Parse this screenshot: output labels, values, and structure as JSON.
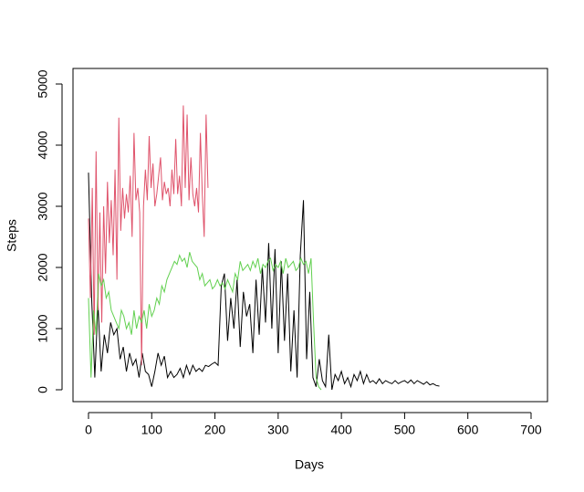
{
  "chart_data": {
    "type": "line",
    "xlabel": "Days",
    "ylabel": "Steps",
    "xlim": [
      -24.5,
      726
    ],
    "ylim": [
      -194,
      5254
    ],
    "xticks": [
      0,
      100,
      200,
      300,
      400,
      500,
      600,
      700
    ],
    "yticks": [
      0,
      1000,
      2000,
      3000,
      4000,
      5000
    ],
    "series": [
      {
        "color": "#000000",
        "x": [
          0,
          5,
          10,
          15,
          20,
          25,
          30,
          35,
          40,
          45,
          50,
          55,
          60,
          65,
          70,
          75,
          80,
          85,
          90,
          95,
          100,
          105,
          110,
          115,
          120,
          125,
          130,
          135,
          140,
          145,
          150,
          155,
          160,
          165,
          170,
          175,
          180,
          185,
          190,
          195,
          200,
          205,
          210,
          215,
          220,
          225,
          230,
          235,
          240,
          245,
          250,
          255,
          260,
          265,
          270,
          275,
          280,
          285,
          290,
          295,
          300,
          305,
          310,
          315,
          320,
          325,
          330,
          335,
          340,
          345,
          350,
          355,
          360,
          365,
          370,
          375,
          380,
          385,
          390,
          395,
          400,
          405,
          410,
          415,
          420,
          425,
          430,
          435,
          440,
          445,
          450,
          455,
          460,
          465,
          470,
          475,
          480,
          485,
          490,
          495,
          500,
          505,
          510,
          515,
          520,
          525,
          530,
          535,
          540,
          545,
          550,
          555
        ],
        "values": [
          3550,
          1500,
          200,
          1400,
          300,
          900,
          600,
          1100,
          900,
          1000,
          500,
          700,
          300,
          600,
          400,
          500,
          200,
          600,
          300,
          250,
          50,
          300,
          600,
          400,
          550,
          200,
          300,
          200,
          250,
          350,
          200,
          400,
          250,
          400,
          300,
          350,
          300,
          400,
          380,
          420,
          450,
          400,
          1700,
          1900,
          800,
          1500,
          1000,
          1800,
          700,
          1600,
          1200,
          1400,
          600,
          1800,
          900,
          2000,
          1100,
          2400,
          1000,
          2300,
          600,
          2100,
          800,
          1900,
          300,
          1300,
          200,
          2200,
          3100,
          500,
          1600,
          200,
          50,
          500,
          150,
          50,
          900,
          0,
          250,
          150,
          300,
          100,
          200,
          50,
          250,
          150,
          300,
          100,
          250,
          120,
          150,
          100,
          180,
          100,
          150,
          120,
          100,
          150,
          100,
          130,
          150,
          110,
          160,
          100,
          150,
          120,
          90,
          130,
          80,
          100,
          70,
          60
        ]
      },
      {
        "color": "#DF536B",
        "x": [
          0,
          3,
          6,
          9,
          12,
          15,
          18,
          21,
          24,
          27,
          30,
          33,
          36,
          39,
          42,
          45,
          48,
          51,
          54,
          57,
          60,
          63,
          66,
          69,
          72,
          75,
          78,
          81,
          84,
          87,
          90,
          93,
          96,
          99,
          102,
          105,
          108,
          111,
          114,
          117,
          120,
          123,
          126,
          129,
          132,
          135,
          138,
          141,
          144,
          147,
          150,
          153,
          156,
          159,
          162,
          165,
          168,
          171,
          174,
          177,
          180,
          183,
          186,
          189
        ],
        "values": [
          2800,
          1500,
          3300,
          900,
          3900,
          1300,
          2900,
          1100,
          3000,
          1900,
          3400,
          2400,
          3100,
          2200,
          3600,
          1800,
          4450,
          2600,
          3300,
          2800,
          3200,
          2900,
          3500,
          2500,
          4200,
          3100,
          3300,
          2900,
          400,
          3000,
          3600,
          3100,
          4150,
          3300,
          3700,
          3000,
          3200,
          3500,
          3800,
          3100,
          3400,
          3200,
          3300,
          3000,
          3600,
          3200,
          4100,
          3200,
          3500,
          3000,
          4650,
          3300,
          4500,
          3100,
          3800,
          3200,
          3000,
          3300,
          2900,
          4200,
          3200,
          2500,
          4500,
          3300
        ]
      },
      {
        "color": "#61D04F",
        "x": [
          0,
          4,
          8,
          12,
          16,
          20,
          24,
          28,
          32,
          36,
          40,
          44,
          48,
          52,
          56,
          60,
          64,
          68,
          72,
          76,
          80,
          84,
          88,
          92,
          96,
          100,
          104,
          108,
          112,
          116,
          120,
          124,
          128,
          132,
          136,
          140,
          144,
          148,
          152,
          156,
          160,
          164,
          168,
          172,
          176,
          180,
          184,
          188,
          192,
          196,
          200,
          204,
          208,
          212,
          216,
          220,
          224,
          228,
          232,
          236,
          240,
          244,
          248,
          252,
          256,
          260,
          264,
          268,
          272,
          276,
          280,
          284,
          288,
          292,
          296,
          300,
          304,
          308,
          312,
          316,
          320,
          324,
          328,
          332,
          336,
          340,
          344,
          348,
          352,
          356,
          360,
          364,
          368
        ],
        "values": [
          1500,
          200,
          1300,
          900,
          1900,
          1700,
          1800,
          1500,
          1600,
          1300,
          1200,
          1100,
          1000,
          1300,
          1200,
          1000,
          1100,
          900,
          1300,
          1000,
          1200,
          1100,
          1300,
          1000,
          1400,
          1200,
          1300,
          1500,
          1400,
          1700,
          1600,
          1800,
          1900,
          2000,
          2100,
          2050,
          2200,
          2100,
          2150,
          2000,
          2250,
          2100,
          2050,
          2000,
          1800,
          1900,
          1700,
          1750,
          1800,
          1650,
          1700,
          1800,
          1700,
          1750,
          1650,
          1800,
          1700,
          1600,
          1900,
          1800,
          2100,
          1950,
          2000,
          2050,
          1950,
          2100,
          2000,
          2150,
          1900,
          2050,
          2000,
          2100,
          2150,
          1950,
          2050,
          2000,
          2100,
          1900,
          2150,
          2000,
          2050,
          2100,
          1950,
          2000,
          2150,
          2050,
          2100,
          1900,
          2150,
          1100,
          200,
          50,
          0
        ]
      }
    ]
  }
}
